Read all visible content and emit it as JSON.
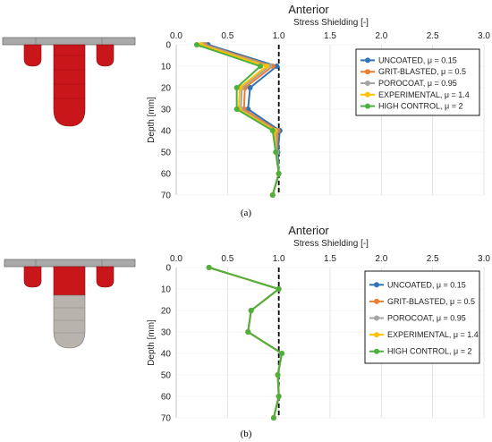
{
  "panels": [
    {
      "id": "a",
      "panel_label": "(a)",
      "implant_variant": "all-red",
      "chart_data": {
        "type": "line",
        "title": "Anterior",
        "xlabel": "Stress Shielding [-]",
        "ylabel": "Depth [mm]",
        "xlim": [
          0,
          3.0
        ],
        "ylim": [
          0,
          70
        ],
        "xticks": [
          "0.0",
          "0.5",
          "1.0",
          "1.5",
          "2.0",
          "2.5",
          "3.0"
        ],
        "yticks": [
          "0",
          "10",
          "20",
          "30",
          "40",
          "50",
          "60",
          "70"
        ],
        "reference_line": {
          "x": 1.0,
          "style": "dashed"
        },
        "legend_position": "top-right",
        "y": [
          0,
          10,
          20,
          30,
          40,
          50,
          60,
          70
        ],
        "series": [
          {
            "name": "UNCOATED, μ = 0.15",
            "color": "#2E75B6",
            "x": [
              0.31,
              0.98,
              0.72,
              0.7,
              1.01,
              0.99,
              1.0,
              0.94
            ]
          },
          {
            "name": "GRIT-BLASTED, μ = 0.5",
            "color": "#ED7D31",
            "x": [
              0.28,
              0.94,
              0.67,
              0.66,
              0.99,
              0.98,
              1.0,
              0.94
            ]
          },
          {
            "name": "POROCOAT, μ = 0.95",
            "color": "#A5A5A5",
            "x": [
              0.26,
              0.91,
              0.64,
              0.63,
              0.97,
              0.98,
              1.0,
              0.94
            ]
          },
          {
            "name": "EXPERIMENTAL, μ = 1.4",
            "color": "#FFC000",
            "x": [
              0.24,
              0.88,
              0.62,
              0.61,
              0.96,
              0.97,
              1.0,
              0.94
            ]
          },
          {
            "name": "HIGH CONTROL, μ = 2",
            "color": "#4CAF3E",
            "x": [
              0.2,
              0.82,
              0.59,
              0.59,
              0.94,
              0.97,
              1.0,
              0.94
            ]
          }
        ]
      }
    },
    {
      "id": "b",
      "panel_label": "(b)",
      "implant_variant": "grey-stem",
      "chart_data": {
        "type": "line",
        "title": "Anterior",
        "xlabel": "Stress Shielding [-]",
        "ylabel": "Depth [mm]",
        "xlim": [
          0,
          3.0
        ],
        "ylim": [
          0,
          70
        ],
        "xticks": [
          "0.0",
          "0.5",
          "1.0",
          "1.5",
          "2.0",
          "2.5",
          "3.0"
        ],
        "yticks": [
          "0",
          "10",
          "20",
          "30",
          "40",
          "50",
          "60",
          "70"
        ],
        "reference_line": {
          "x": 1.0,
          "style": "dashed"
        },
        "legend_position": "top-right",
        "y": [
          0,
          10,
          20,
          30,
          40,
          50,
          60,
          70
        ],
        "series": [
          {
            "name": "UNCOATED, μ = 0.15",
            "color": "#2E75B6",
            "x": [
              0.32,
              1.0,
              0.73,
              0.7,
              1.03,
              0.99,
              1.0,
              0.95
            ]
          },
          {
            "name": "GRIT-BLASTED, μ = 0.5",
            "color": "#ED7D31",
            "x": [
              0.32,
              1.0,
              0.73,
              0.7,
              1.03,
              0.99,
              1.0,
              0.95
            ]
          },
          {
            "name": "POROCOAT, μ = 0.95",
            "color": "#A5A5A5",
            "x": [
              0.32,
              1.0,
              0.73,
              0.7,
              1.03,
              0.99,
              1.0,
              0.95
            ]
          },
          {
            "name": "EXPERIMENTAL, μ = 1.4",
            "color": "#FFC000",
            "x": [
              0.32,
              1.0,
              0.73,
              0.7,
              1.03,
              0.99,
              1.0,
              0.95
            ]
          },
          {
            "name": "HIGH CONTROL, μ = 2",
            "color": "#4CAF3E",
            "x": [
              0.32,
              1.0,
              0.73,
              0.7,
              1.03,
              0.99,
              1.0,
              0.95
            ]
          }
        ]
      }
    }
  ]
}
